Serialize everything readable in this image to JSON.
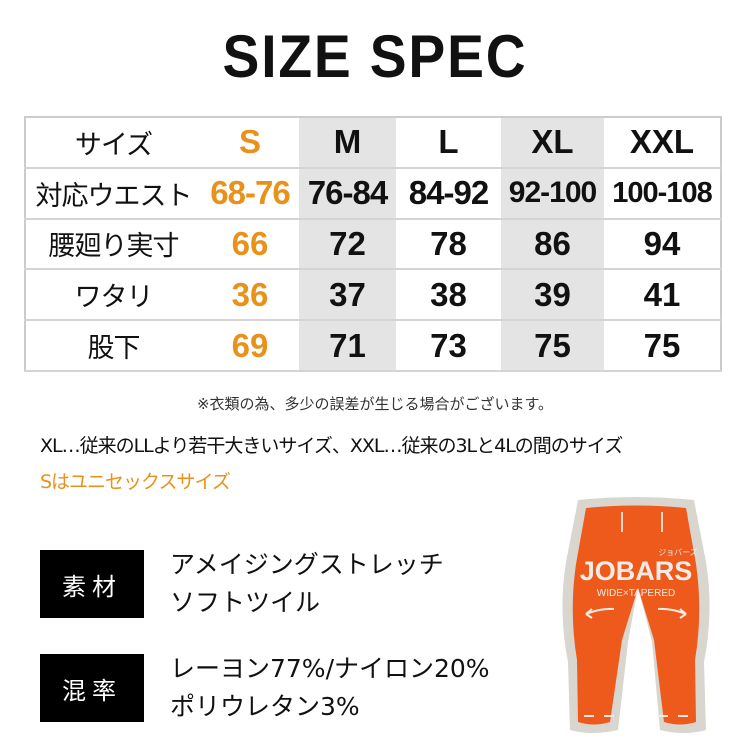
{
  "title": "SIZE SPEC",
  "table": {
    "header": [
      "サイズ",
      "S",
      "M",
      "L",
      "XL",
      "XXL"
    ],
    "rows": [
      [
        "対応ウエスト",
        "68-76",
        "76-84",
        "84-92",
        "92-100",
        "100-108"
      ],
      [
        "腰廻り実寸",
        "66",
        "72",
        "78",
        "86",
        "94"
      ],
      [
        "ワタリ",
        "36",
        "37",
        "38",
        "39",
        "41"
      ],
      [
        "股下",
        "69",
        "71",
        "73",
        "75",
        "75"
      ]
    ]
  },
  "note": "※衣類の為、多少の誤差が生じる場合がございます。",
  "xl_note": "XL…従来のLLより若干大きいサイズ、XXL…従来の3Lと4Lの間のサイズ",
  "s_note": "Sはユニセックスサイズ",
  "material": {
    "label": "素材",
    "lines": [
      "アメイジングストレッチ",
      "ソフトツイル"
    ]
  },
  "blend": {
    "label": "混率",
    "lines": [
      "レーヨン77%/ナイロン20%",
      "ポリウレタン3%"
    ]
  },
  "logo": {
    "brand": "JOBARS",
    "kana": "ジョバーズ",
    "sub": "WIDE×TAPERED"
  },
  "colors": {
    "accent": "#e8911b",
    "pants": "#ee5a1c"
  }
}
